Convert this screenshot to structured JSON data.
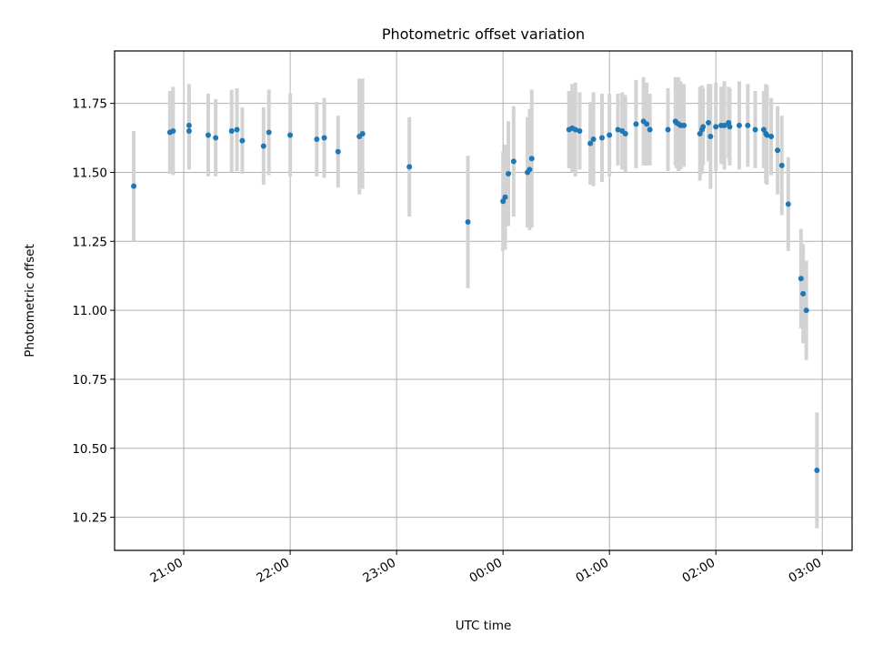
{
  "chart_data": {
    "type": "scatter",
    "title": "Photometric offset variation",
    "xlabel": "UTC time",
    "ylabel": "Photometric offset",
    "x_tick_labels": [
      "21:00",
      "22:00",
      "23:00",
      "00:00",
      "01:00",
      "02:00",
      "03:00"
    ],
    "y_tick_labels": [
      "10.25",
      "10.50",
      "10.75",
      "11.00",
      "11.25",
      "11.50",
      "11.75"
    ],
    "ylim": [
      10.13,
      11.94
    ],
    "xlim_hours": [
      20.35,
      27.28
    ],
    "grid": true,
    "colors": {
      "marker": "#1f77b4",
      "errorbar": "#d3d3d3",
      "grid": "#b0b0b0"
    },
    "series": [
      {
        "x": [
          20.53,
          20.87,
          20.9,
          21.05,
          21.05,
          21.23,
          21.3,
          21.45,
          21.5,
          21.55,
          21.75,
          21.8,
          22.0,
          22.25,
          22.32,
          22.45,
          22.65,
          22.68,
          23.12,
          23.67,
          24.0,
          24.02,
          24.05,
          24.1,
          24.23,
          24.25,
          24.27,
          24.62,
          24.65,
          24.68,
          24.72,
          24.82,
          24.85,
          24.93,
          25.0,
          25.08,
          25.12,
          25.15,
          25.25,
          25.32,
          25.35,
          25.38,
          25.55,
          25.62,
          25.63,
          25.65,
          25.67,
          25.7,
          25.85,
          25.87,
          25.88,
          25.93,
          25.95,
          26.0,
          26.05,
          26.08,
          26.12,
          26.13,
          26.22,
          26.3,
          26.37,
          26.45,
          26.47,
          26.48,
          26.52,
          26.58,
          26.62,
          26.68,
          26.8,
          26.82,
          26.85,
          26.95
        ],
        "y": [
          11.45,
          11.645,
          11.65,
          11.67,
          11.65,
          11.635,
          11.625,
          11.65,
          11.655,
          11.615,
          11.595,
          11.645,
          11.635,
          11.62,
          11.625,
          11.575,
          11.63,
          11.64,
          11.52,
          11.32,
          11.395,
          11.41,
          11.495,
          11.54,
          11.5,
          11.51,
          11.55,
          11.655,
          11.66,
          11.655,
          11.65,
          11.605,
          11.62,
          11.625,
          11.635,
          11.655,
          11.65,
          11.64,
          11.675,
          11.685,
          11.675,
          11.655,
          11.655,
          11.685,
          11.68,
          11.675,
          11.67,
          11.67,
          11.64,
          11.655,
          11.665,
          11.68,
          11.63,
          11.665,
          11.67,
          11.67,
          11.68,
          11.665,
          11.67,
          11.67,
          11.655,
          11.655,
          11.64,
          11.635,
          11.63,
          11.58,
          11.525,
          11.385,
          11.115,
          11.06,
          11.0,
          10.42
        ],
        "err": [
          0.2,
          0.15,
          0.16,
          0.15,
          0.14,
          0.15,
          0.14,
          0.15,
          0.15,
          0.12,
          0.14,
          0.155,
          0.15,
          0.135,
          0.145,
          0.13,
          0.21,
          0.2,
          0.18,
          0.24,
          0.18,
          0.19,
          0.19,
          0.2,
          0.2,
          0.22,
          0.25,
          0.14,
          0.16,
          0.17,
          0.14,
          0.15,
          0.17,
          0.16,
          0.15,
          0.13,
          0.14,
          0.14,
          0.16,
          0.16,
          0.15,
          0.13,
          0.15,
          0.16,
          0.165,
          0.17,
          0.16,
          0.15,
          0.17,
          0.16,
          0.14,
          0.14,
          0.19,
          0.16,
          0.14,
          0.16,
          0.13,
          0.14,
          0.16,
          0.15,
          0.14,
          0.14,
          0.18,
          0.18,
          0.14,
          0.16,
          0.18,
          0.17,
          0.18,
          0.18,
          0.18,
          0.21
        ]
      }
    ]
  }
}
